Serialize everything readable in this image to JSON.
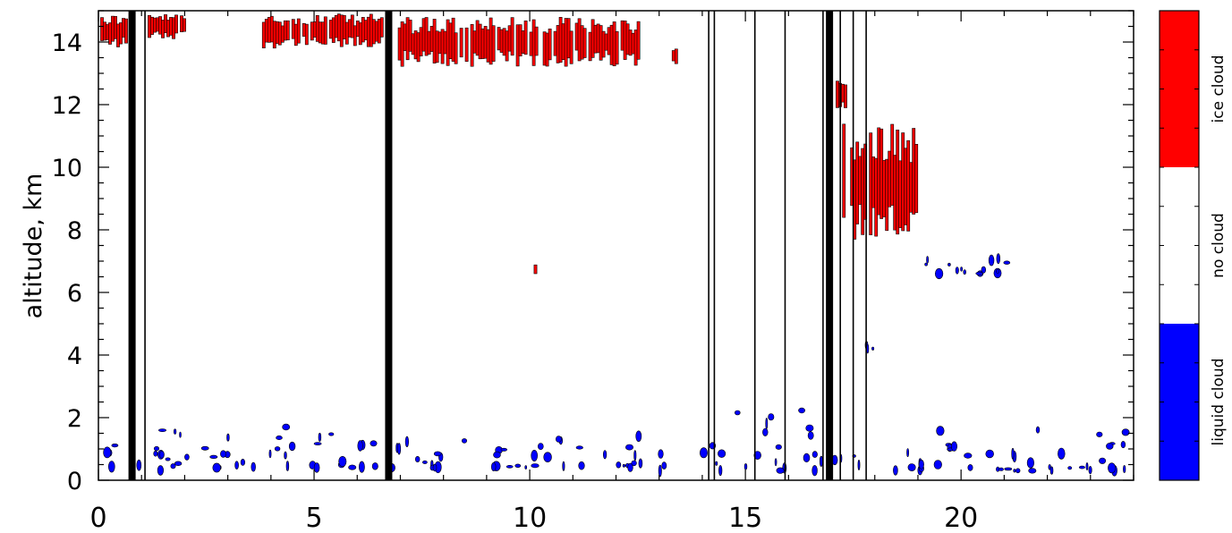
{
  "chart_data": {
    "type": "heatmap",
    "title": "",
    "xlabel": "",
    "ylabel": "altitude, km",
    "xlim": [
      0,
      24
    ],
    "ylim": [
      0,
      15
    ],
    "x_ticks": [
      0,
      5,
      10,
      15,
      20
    ],
    "x_tick_labels": [
      "0",
      "5",
      "10",
      "15",
      "20"
    ],
    "y_ticks": [
      0,
      2,
      4,
      6,
      8,
      10,
      12,
      14
    ],
    "y_tick_labels": [
      "0",
      "2",
      "4",
      "6",
      "8",
      "10",
      "12",
      "14"
    ],
    "legend": {
      "placement": "right",
      "entries": [
        {
          "label": "ice cloud",
          "color": "#ff0000"
        },
        {
          "label": "no cloud",
          "color": "#ffffff"
        },
        {
          "label": "liquid cloud",
          "color": "#0000ff"
        }
      ]
    },
    "gaps_thin": [
      1.08,
      14.15,
      14.28,
      15.22,
      15.92,
      16.8,
      17.2,
      17.5,
      17.8
    ],
    "gaps_thick": [
      0.78,
      6.73,
      16.95
    ],
    "ice_cloud_regions": [
      {
        "x": [
          0.05,
          0.65
        ],
        "y": [
          13.8,
          14.9
        ]
      },
      {
        "x": [
          1.15,
          2.0
        ],
        "y": [
          14.1,
          14.9
        ]
      },
      {
        "x": [
          3.8,
          6.6
        ],
        "y": [
          13.8,
          14.9
        ]
      },
      {
        "x": [
          6.95,
          12.6
        ],
        "y": [
          13.2,
          14.8
        ]
      },
      {
        "x": [
          13.3,
          13.4
        ],
        "y": [
          13.3,
          13.9
        ]
      },
      {
        "x": [
          17.1,
          17.3
        ],
        "y": [
          11.9,
          12.8
        ]
      },
      {
        "x": [
          17.25,
          19.0
        ],
        "y": [
          7.6,
          11.4
        ]
      },
      {
        "x": [
          10.1,
          10.15
        ],
        "y": [
          6.4,
          7.1
        ]
      }
    ],
    "liquid_cloud_regions": [
      {
        "x": [
          0.0,
          1.5
        ],
        "y": [
          0.3,
          1.7
        ]
      },
      {
        "x": [
          1.6,
          6.7
        ],
        "y": [
          0.4,
          1.8
        ]
      },
      {
        "x": [
          6.7,
          12.7
        ],
        "y": [
          0.4,
          1.5
        ]
      },
      {
        "x": [
          13.0,
          13.2
        ],
        "y": [
          0.3,
          1.8
        ]
      },
      {
        "x": [
          14.0,
          17.9
        ],
        "y": [
          0.3,
          2.4
        ]
      },
      {
        "x": [
          18.0,
          24.0
        ],
        "y": [
          0.3,
          1.7
        ]
      },
      {
        "x": [
          17.8,
          18.0
        ],
        "y": [
          4.2,
          4.4
        ]
      },
      {
        "x": [
          19.1,
          21.2
        ],
        "y": [
          6.6,
          7.1
        ]
      }
    ]
  }
}
